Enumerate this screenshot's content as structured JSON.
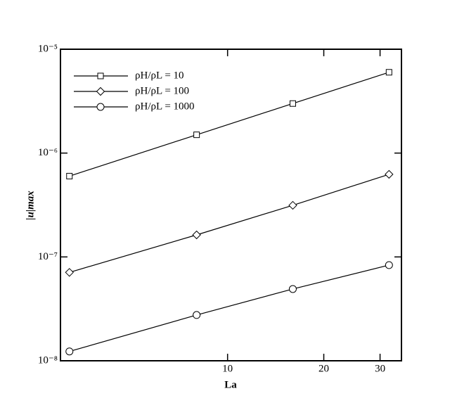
{
  "chart_data": {
    "type": "line",
    "xlabel": "La",
    "ylabel": "|u|max",
    "x": [
      3.2,
      8,
      16,
      32
    ],
    "series": [
      {
        "name": "ρH/ρL = 10",
        "color": "#000000",
        "marker": "square",
        "values": [
          6e-07,
          1.5e-06,
          3e-06,
          6e-06
        ]
      },
      {
        "name": "ρH/ρL = 100",
        "color": "#000000",
        "marker": "diamond",
        "values": [
          7.1e-08,
          1.63e-07,
          3.14e-07,
          6.24e-07
        ]
      },
      {
        "name": "ρH/ρL = 1000",
        "color": "#000000",
        "marker": "circle",
        "values": [
          1.23e-08,
          2.76e-08,
          4.91e-08,
          8.34e-08
        ]
      }
    ],
    "xlim": [
      3,
      35
    ],
    "ylim": [
      1e-08,
      1e-05
    ],
    "xticks": [
      10,
      20,
      30
    ],
    "yticks": [
      {
        "value": 1e-08,
        "label": "10⁻⁸"
      },
      {
        "value": 1e-07,
        "label": "10⁻⁷"
      },
      {
        "value": 1e-06,
        "label": "10⁻⁶"
      },
      {
        "value": 1e-05,
        "label": "10⁻⁵"
      }
    ],
    "xscale": "log",
    "yscale": "log",
    "legend": "upper left",
    "grid": false
  }
}
